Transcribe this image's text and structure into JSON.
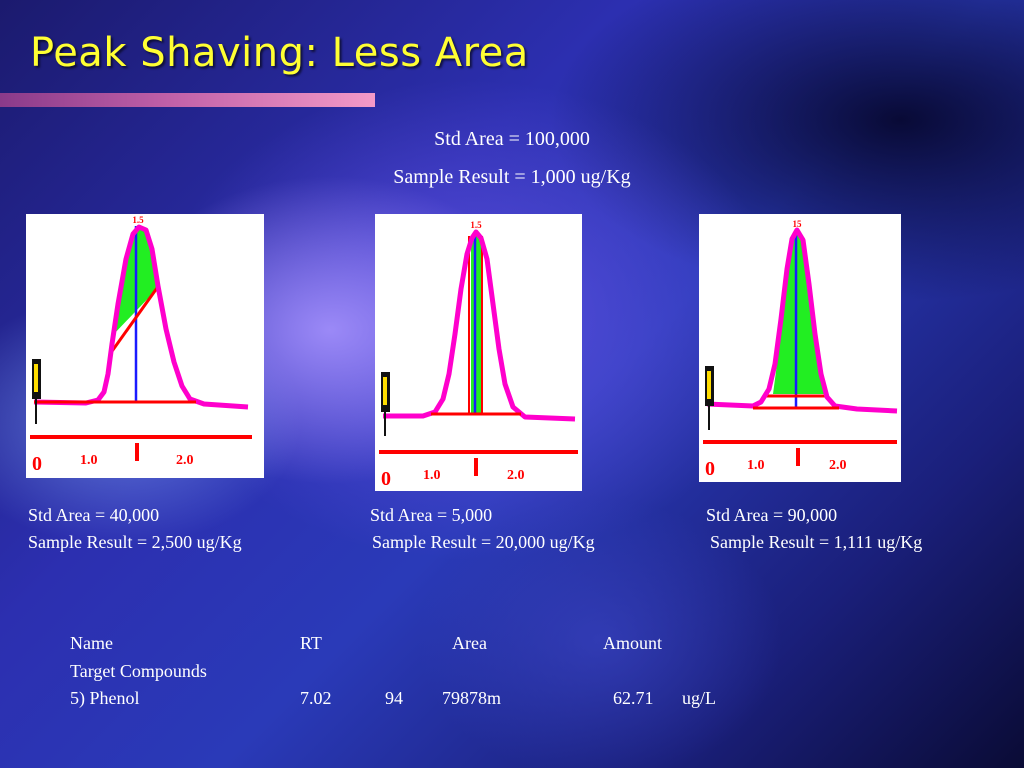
{
  "title": "Peak Shaving: Less Area",
  "reference": {
    "std_area": "Std Area = 100,000",
    "sample_result": "Sample Result = 1,000 ug/Kg"
  },
  "panels": [
    {
      "peak_label": "1.5",
      "axis_zero": "0",
      "axis_one": "1.0",
      "axis_two": "2.0",
      "std_area": "Std Area = 40,000",
      "sample_result": "Sample Result = 2,500 ug/Kg"
    },
    {
      "peak_label": "1.5",
      "axis_zero": "0",
      "axis_one": "1.0",
      "axis_two": "2.0",
      "std_area": "Std Area = 5,000",
      "sample_result": "Sample Result = 20,000 ug/Kg"
    },
    {
      "peak_label": "15",
      "axis_zero": "0",
      "axis_one": "1.0",
      "axis_two": "2.0",
      "std_area": "Std Area = 90,000",
      "sample_result": "Sample Result = 1,111 ug/Kg"
    }
  ],
  "results_table": {
    "headers": {
      "name": "Name",
      "rt": "RT",
      "area": "Area",
      "amount": "Amount"
    },
    "section": "Target Compounds",
    "row": {
      "name": "5) Phenol",
      "rt": "7.02",
      "q": "94",
      "area": "79878m",
      "amount": "62.71",
      "unit": "ug/L"
    }
  },
  "colors": {
    "title": "#ffff33",
    "peak": "#ff00cc",
    "baseline": "#ff0000",
    "fill": "#22ee22",
    "marker": "#1a1aff"
  }
}
